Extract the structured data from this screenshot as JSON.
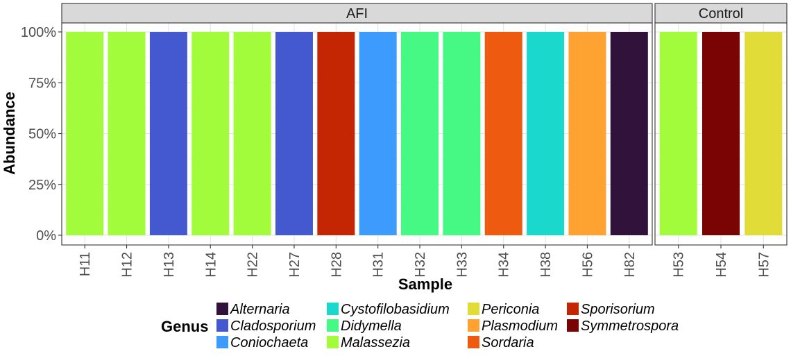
{
  "chart_data": {
    "type": "bar",
    "xlabel": "Sample",
    "ylabel": "Abundance",
    "ylim": [
      0,
      1
    ],
    "yticks": [
      {
        "value": 0,
        "label": "0%"
      },
      {
        "value": 0.25,
        "label": "25%"
      },
      {
        "value": 0.5,
        "label": "50%"
      },
      {
        "value": 0.75,
        "label": "75%"
      },
      {
        "value": 1,
        "label": "100%"
      }
    ],
    "grid": true,
    "legend": {
      "title": "Genus",
      "placement": "bottom",
      "entries": [
        {
          "name": "Alternaria",
          "color": "#30123B"
        },
        {
          "name": "Cladosporium",
          "color": "#4458CF"
        },
        {
          "name": "Coniochaeta",
          "color": "#3E9BFE"
        },
        {
          "name": "Cystofilobasidium",
          "color": "#1BD8CC"
        },
        {
          "name": "Didymella",
          "color": "#46F884"
        },
        {
          "name": "Malassezia",
          "color": "#A2FC3C"
        },
        {
          "name": "Periconia",
          "color": "#E2DC38"
        },
        {
          "name": "Plasmodium",
          "color": "#FEA332"
        },
        {
          "name": "Sordaria",
          "color": "#EF5A11"
        },
        {
          "name": "Sporisorium",
          "color": "#C42503"
        },
        {
          "name": "Symmetrospora",
          "color": "#7A0403"
        }
      ]
    },
    "panels": [
      {
        "name": "AFI",
        "bars": [
          {
            "sample": "H11",
            "genus": "Malassezia",
            "value": 1.0
          },
          {
            "sample": "H12",
            "genus": "Malassezia",
            "value": 1.0
          },
          {
            "sample": "H13",
            "genus": "Cladosporium",
            "value": 1.0
          },
          {
            "sample": "H14",
            "genus": "Malassezia",
            "value": 1.0
          },
          {
            "sample": "H22",
            "genus": "Malassezia",
            "value": 1.0
          },
          {
            "sample": "H27",
            "genus": "Cladosporium",
            "value": 1.0
          },
          {
            "sample": "H28",
            "genus": "Sporisorium",
            "value": 1.0
          },
          {
            "sample": "H31",
            "genus": "Coniochaeta",
            "value": 1.0
          },
          {
            "sample": "H32",
            "genus": "Didymella",
            "value": 1.0
          },
          {
            "sample": "H33",
            "genus": "Didymella",
            "value": 1.0
          },
          {
            "sample": "H34",
            "genus": "Sordaria",
            "value": 1.0
          },
          {
            "sample": "H38",
            "genus": "Cystofilobasidium",
            "value": 1.0
          },
          {
            "sample": "H56",
            "genus": "Plasmodium",
            "value": 1.0
          },
          {
            "sample": "H82",
            "genus": "Alternaria",
            "value": 1.0
          }
        ]
      },
      {
        "name": "Control",
        "bars": [
          {
            "sample": "H53",
            "genus": "Malassezia",
            "value": 1.0
          },
          {
            "sample": "H54",
            "genus": "Symmetrospora",
            "value": 1.0
          },
          {
            "sample": "H57",
            "genus": "Periconia",
            "value": 1.0
          }
        ]
      }
    ]
  }
}
